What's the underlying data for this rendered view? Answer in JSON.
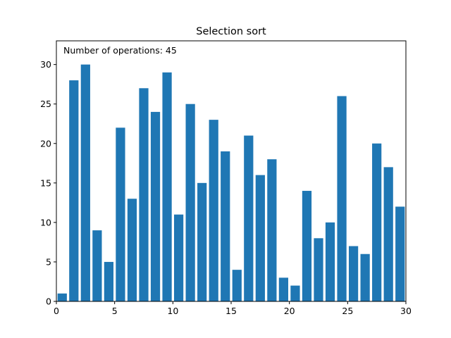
{
  "chart_data": {
    "type": "bar",
    "title": "Selection sort",
    "annotation": "Number of operations: 45",
    "xlabel": "",
    "ylabel": "",
    "x": [
      0,
      1,
      2,
      3,
      4,
      5,
      6,
      7,
      8,
      9,
      10,
      11,
      12,
      13,
      14,
      15,
      16,
      17,
      18,
      19,
      20,
      21,
      22,
      23,
      24,
      25,
      26,
      27,
      28,
      29
    ],
    "values": [
      1,
      28,
      30,
      9,
      5,
      22,
      13,
      27,
      24,
      29,
      11,
      25,
      15,
      23,
      19,
      4,
      21,
      16,
      18,
      3,
      2,
      14,
      8,
      10,
      26,
      7,
      6,
      20,
      17,
      12
    ],
    "xlim": [
      0,
      30
    ],
    "ylim": [
      0,
      33
    ],
    "xticks": [
      0,
      5,
      10,
      15,
      20,
      25,
      30
    ],
    "yticks": [
      0,
      5,
      10,
      15,
      20,
      25,
      30
    ],
    "bar_color": "#1f77b4",
    "grid": false,
    "legend": "none"
  }
}
